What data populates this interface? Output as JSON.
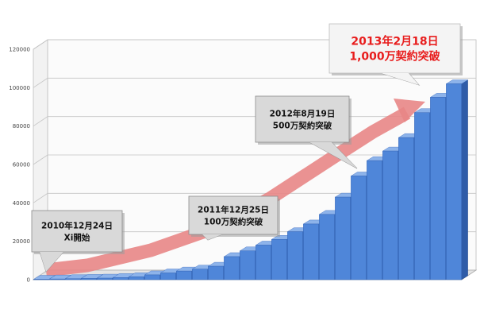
{
  "chart_data": {
    "type": "bar",
    "title": "",
    "xlabel": "",
    "ylabel": "",
    "ylim": [
      0,
      120000
    ],
    "yticks": [
      0,
      20000,
      40000,
      60000,
      80000,
      100000,
      120000
    ],
    "grid": true,
    "legend": "none",
    "bar_style": "3d",
    "values": [
      200,
      350,
      500,
      650,
      800,
      1100,
      1500,
      2500,
      3500,
      4500,
      5500,
      7000,
      12000,
      15000,
      18000,
      21000,
      25000,
      29000,
      34000,
      43000,
      54000,
      62000,
      67000,
      74000,
      87000,
      95000,
      102000
    ],
    "colors": {
      "bar_front": "#4f86d9",
      "bar_side": "#2f5ca8",
      "bar_top": "#8db3ea",
      "arrow": "#e88686",
      "callout_fill": "#d9d9d9",
      "highlight_fill": "#f4f4f4",
      "highlight_text": "#e81c1c"
    },
    "annotations": [
      {
        "lines": [
          "2010年12月24日",
          "Xi開始"
        ],
        "highlight": false
      },
      {
        "lines": [
          "2011年12月25日",
          "100万契約突破"
        ],
        "highlight": false
      },
      {
        "lines": [
          "2012年8月19日",
          "500万契約突破"
        ],
        "highlight": false
      },
      {
        "lines": [
          "2013年2月18日",
          "1,000万契約突破"
        ],
        "highlight": true
      }
    ]
  }
}
